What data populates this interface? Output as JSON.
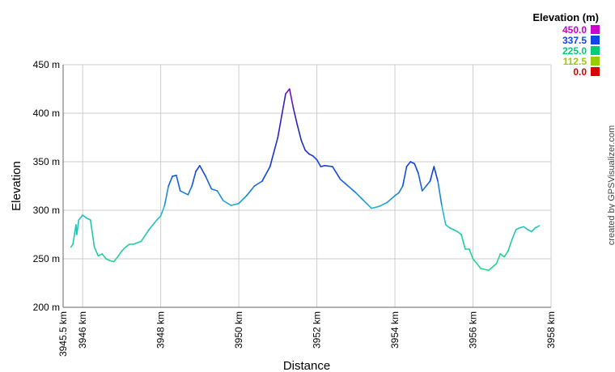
{
  "chart_data": {
    "type": "line",
    "xlabel": "Distance",
    "ylabel": "Elevation",
    "xlim": [
      3945.5,
      3958
    ],
    "ylim": [
      200,
      450
    ],
    "x_ticks": [
      {
        "value": 3945.5,
        "label": "3945.5 km"
      },
      {
        "value": 3946,
        "label": "3946 km"
      },
      {
        "value": 3948,
        "label": "3948 km"
      },
      {
        "value": 3950,
        "label": "3950 km"
      },
      {
        "value": 3952,
        "label": "3952 km"
      },
      {
        "value": 3954,
        "label": "3954 km"
      },
      {
        "value": 3956,
        "label": "3956 km"
      },
      {
        "value": 3958,
        "label": "3958 km"
      }
    ],
    "y_ticks": [
      {
        "value": 200,
        "label": "200 m"
      },
      {
        "value": 250,
        "label": "250 m"
      },
      {
        "value": 300,
        "label": "300 m"
      },
      {
        "value": 350,
        "label": "350 m"
      },
      {
        "value": 400,
        "label": "400 m"
      },
      {
        "value": 450,
        "label": "450 m"
      }
    ],
    "grid": true,
    "legend": {
      "title": "Elevation (m)",
      "placement": "top-right",
      "entries": [
        {
          "label": "450.0",
          "color": "#cc00cc"
        },
        {
          "label": "337.5",
          "color": "#1144ee"
        },
        {
          "label": "225.0",
          "color": "#00cc77"
        },
        {
          "label": "112.5",
          "color": "#99cc00"
        },
        {
          "label": "0.0",
          "color": "#dd0000"
        }
      ]
    },
    "color_stops": [
      {
        "value": 0,
        "color": "#dd0000"
      },
      {
        "value": 112.5,
        "color": "#99cc00"
      },
      {
        "value": 225,
        "color": "#22dd77"
      },
      {
        "value": 300,
        "color": "#22bbcc"
      },
      {
        "value": 337.5,
        "color": "#1144dd"
      },
      {
        "value": 390,
        "color": "#2222bb"
      },
      {
        "value": 450,
        "color": "#bb00cc"
      }
    ],
    "series": [
      {
        "x": [
          3945.7,
          3945.75,
          3945.83,
          3945.85,
          3945.9,
          3946.0,
          3946.1,
          3946.2,
          3946.3,
          3946.4,
          3946.5,
          3946.6,
          3946.7,
          3946.8,
          3946.9,
          3947.0,
          3947.1,
          3947.2,
          3947.3,
          3947.5,
          3947.7,
          3947.9,
          3948.0,
          3948.1,
          3948.2,
          3948.3,
          3948.4,
          3948.5,
          3948.7,
          3948.8,
          3948.9,
          3949.0,
          3949.15,
          3949.3,
          3949.45,
          3949.6,
          3949.8,
          3950.0,
          3950.2,
          3950.4,
          3950.6,
          3950.8,
          3951.0,
          3951.2,
          3951.3,
          3951.4,
          3951.5,
          3951.6,
          3951.7,
          3951.8,
          3951.9,
          3952.0,
          3952.1,
          3952.2,
          3952.4,
          3952.6,
          3952.8,
          3953.0,
          3953.2,
          3953.4,
          3953.6,
          3953.8,
          3954.0,
          3954.1,
          3954.2,
          3954.3,
          3954.4,
          3954.5,
          3954.6,
          3954.7,
          3954.8,
          3954.9,
          3955.0,
          3955.1,
          3955.2,
          3955.3,
          3955.4,
          3955.5,
          3955.6,
          3955.7,
          3955.8,
          3955.9,
          3956.0,
          3956.2,
          3956.4,
          3956.6,
          3956.7,
          3956.8,
          3956.9,
          3957.0,
          3957.1,
          3957.2,
          3957.3,
          3957.4,
          3957.5,
          3957.6,
          3957.7
        ],
        "y": [
          262,
          265,
          285,
          275,
          290,
          295,
          292,
          290,
          262,
          253,
          255,
          250,
          248,
          247,
          252,
          258,
          262,
          265,
          265,
          268,
          280,
          290,
          294,
          305,
          325,
          335,
          336,
          320,
          316,
          325,
          340,
          346,
          335,
          322,
          320,
          310,
          305,
          307,
          315,
          325,
          330,
          345,
          375,
          420,
          425,
          405,
          388,
          372,
          362,
          358,
          356,
          352,
          345,
          346,
          345,
          332,
          325,
          318,
          310,
          302,
          304,
          308,
          315,
          318,
          325,
          345,
          350,
          348,
          338,
          320,
          325,
          330,
          345,
          330,
          305,
          285,
          282,
          280,
          278,
          275,
          260,
          260,
          250,
          240,
          238,
          245,
          255,
          252,
          258,
          270,
          280,
          282,
          283,
          280,
          278,
          282,
          284
        ]
      }
    ],
    "credit": "created by GPSVisualizer.com"
  }
}
